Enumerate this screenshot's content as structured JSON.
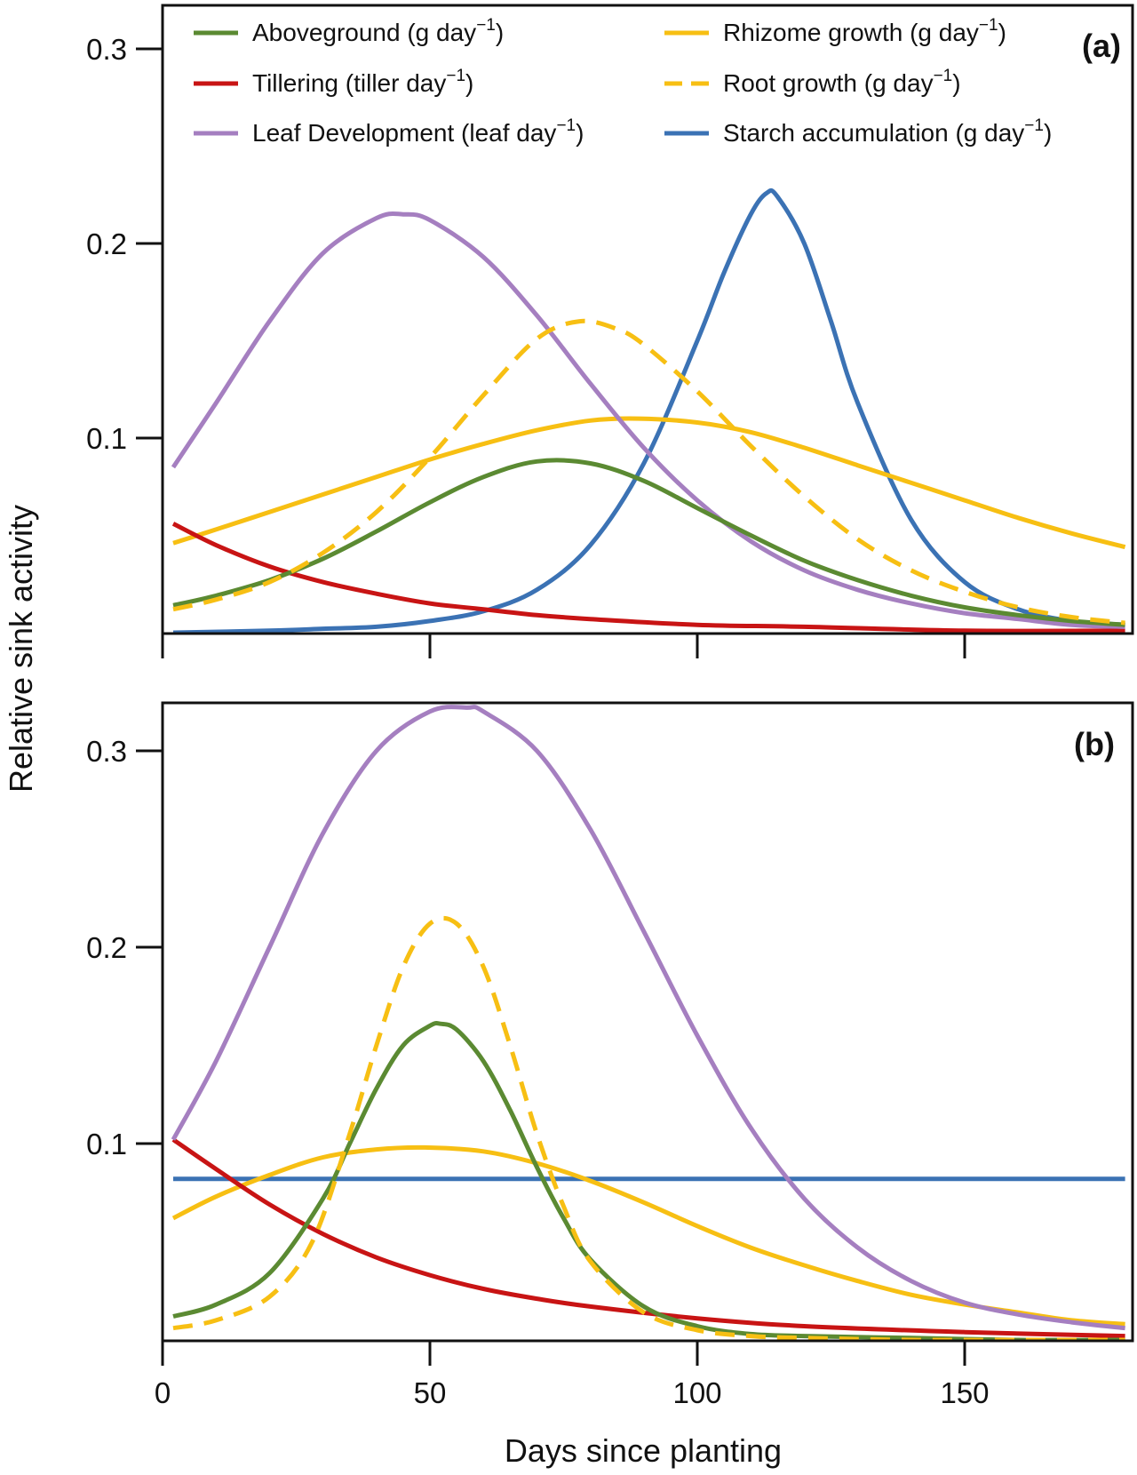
{
  "figure": {
    "ylabel": "Relative sink activity",
    "xlabel": "Days since planting"
  },
  "colors": {
    "aboveground": "#5b8a32",
    "tillering": "#c81414",
    "leaf": "#a57fc0",
    "rhizome": "#f7bf13",
    "root": "#f7bf13",
    "starch": "#3b72b4",
    "axis": "#111111"
  },
  "legend": [
    {
      "key": "aboveground",
      "text": "Aboveground (g day",
      "sup": "−1",
      "close": ")",
      "dashed": false
    },
    {
      "key": "tillering",
      "text": "Tillering (tiller day",
      "sup": "−1",
      "close": ")",
      "dashed": false
    },
    {
      "key": "leaf",
      "text": "Leaf Development (leaf day",
      "sup": "−1",
      "close": ")",
      "dashed": false
    },
    {
      "key": "rhizome",
      "text": "Rhizome  growth (g day",
      "sup": "−1",
      "close": ")",
      "dashed": false
    },
    {
      "key": "root",
      "text": "Root growth (g day",
      "sup": "−1",
      "close": ")",
      "dashed": true
    },
    {
      "key": "starch",
      "text": "Starch accumulation (g day",
      "sup": "−1",
      "close": ")",
      "dashed": false
    }
  ],
  "chart_data": [
    {
      "type": "line",
      "panel_label": "(a)",
      "xlabel": "Days since planting",
      "ylabel": "Relative sink activity",
      "xlim": [
        0,
        180
      ],
      "ylim": [
        0,
        0.32
      ],
      "xticks": [
        0,
        50,
        100,
        150
      ],
      "yticks": [
        0.1,
        0.2,
        0.3
      ],
      "ytick_labels": [
        "0.1",
        "0.2",
        "0.3"
      ],
      "series": [
        {
          "key": "aboveground",
          "name": "Aboveground (g day−1)",
          "x": [
            2,
            10,
            20,
            30,
            40,
            50,
            60,
            70,
            80,
            90,
            100,
            110,
            120,
            130,
            140,
            150,
            160,
            170,
            180
          ],
          "y": [
            0.014,
            0.019,
            0.027,
            0.038,
            0.052,
            0.067,
            0.08,
            0.088,
            0.087,
            0.078,
            0.064,
            0.05,
            0.037,
            0.027,
            0.019,
            0.013,
            0.009,
            0.006,
            0.004
          ]
        },
        {
          "key": "tillering",
          "name": "Tillering (tiller day−1)",
          "x": [
            2,
            10,
            20,
            30,
            40,
            50,
            60,
            70,
            80,
            100,
            120,
            150,
            180
          ],
          "y": [
            0.056,
            0.045,
            0.034,
            0.026,
            0.02,
            0.015,
            0.012,
            0.009,
            0.007,
            0.004,
            0.003,
            0.001,
            0.001
          ]
        },
        {
          "key": "leaf",
          "name": "Leaf Development (leaf day−1)",
          "x": [
            2,
            10,
            20,
            30,
            40,
            45,
            50,
            60,
            70,
            80,
            90,
            100,
            110,
            120,
            130,
            140,
            150,
            160,
            170,
            180
          ],
          "y": [
            0.085,
            0.118,
            0.16,
            0.195,
            0.213,
            0.215,
            0.212,
            0.193,
            0.163,
            0.128,
            0.095,
            0.068,
            0.047,
            0.032,
            0.022,
            0.015,
            0.01,
            0.007,
            0.004,
            0.003
          ]
        },
        {
          "key": "rhizome",
          "name": "Rhizome  growth (g day−1)",
          "x": [
            2,
            10,
            20,
            30,
            40,
            50,
            60,
            70,
            80,
            89,
            100,
            110,
            120,
            130,
            140,
            150,
            160,
            170,
            180
          ],
          "y": [
            0.046,
            0.053,
            0.062,
            0.071,
            0.08,
            0.089,
            0.097,
            0.104,
            0.109,
            0.11,
            0.108,
            0.103,
            0.095,
            0.086,
            0.077,
            0.068,
            0.059,
            0.051,
            0.044
          ]
        },
        {
          "key": "root",
          "name": "Root growth (g day−1)",
          "dashed": true,
          "x": [
            2,
            10,
            20,
            30,
            40,
            50,
            60,
            70,
            78,
            85,
            90,
            100,
            110,
            120,
            130,
            140,
            150,
            160,
            170,
            180
          ],
          "y": [
            0.012,
            0.017,
            0.026,
            0.041,
            0.062,
            0.09,
            0.122,
            0.151,
            0.16,
            0.156,
            0.148,
            0.124,
            0.096,
            0.07,
            0.048,
            0.032,
            0.021,
            0.013,
            0.008,
            0.005
          ]
        },
        {
          "key": "starch",
          "name": "Starch accumulation (g day−1)",
          "x": [
            2,
            20,
            30,
            40,
            50,
            60,
            70,
            80,
            90,
            100,
            105,
            110,
            113,
            115,
            120,
            125,
            130,
            140,
            150,
            160,
            170,
            180
          ],
          "y": [
            0.0,
            0.001,
            0.002,
            0.003,
            0.006,
            0.011,
            0.022,
            0.045,
            0.087,
            0.15,
            0.185,
            0.215,
            0.226,
            0.224,
            0.2,
            0.16,
            0.118,
            0.058,
            0.026,
            0.012,
            0.006,
            0.004
          ]
        }
      ]
    },
    {
      "type": "line",
      "panel_label": "(b)",
      "xlabel": "Days since planting",
      "ylabel": "Relative sink activity",
      "xlim": [
        0,
        180
      ],
      "ylim": [
        0,
        0.325
      ],
      "xticks": [
        0,
        50,
        100,
        150
      ],
      "xtick_labels": [
        "0",
        "50",
        "100",
        "150"
      ],
      "yticks": [
        0.1,
        0.2,
        0.3
      ],
      "ytick_labels": [
        "0.1",
        "0.2",
        "0.3"
      ],
      "series": [
        {
          "key": "aboveground",
          "name": "Aboveground (g day−1)",
          "x": [
            2,
            10,
            20,
            30,
            35,
            40,
            45,
            50,
            52,
            55,
            60,
            65,
            70,
            75,
            80,
            90,
            100,
            110,
            120,
            140,
            160,
            180
          ],
          "y": [
            0.012,
            0.018,
            0.034,
            0.072,
            0.1,
            0.128,
            0.15,
            0.16,
            0.161,
            0.158,
            0.142,
            0.117,
            0.088,
            0.062,
            0.041,
            0.017,
            0.007,
            0.003,
            0.002,
            0.001,
            0.0,
            0.0
          ]
        },
        {
          "key": "tillering",
          "name": "Tillering (tiller day−1)",
          "x": [
            2,
            10,
            20,
            30,
            40,
            50,
            60,
            70,
            80,
            100,
            120,
            150,
            180
          ],
          "y": [
            0.102,
            0.087,
            0.069,
            0.054,
            0.042,
            0.033,
            0.026,
            0.021,
            0.017,
            0.011,
            0.007,
            0.004,
            0.002
          ]
        },
        {
          "key": "leaf",
          "name": "Leaf Development (leaf day−1)",
          "x": [
            2,
            10,
            20,
            30,
            40,
            50,
            57,
            60,
            70,
            80,
            90,
            100,
            110,
            120,
            130,
            140,
            150,
            160,
            170,
            180
          ],
          "y": [
            0.102,
            0.142,
            0.2,
            0.258,
            0.3,
            0.32,
            0.322,
            0.32,
            0.3,
            0.26,
            0.208,
            0.155,
            0.108,
            0.072,
            0.047,
            0.03,
            0.019,
            0.013,
            0.009,
            0.006
          ]
        },
        {
          "key": "rhizome",
          "name": "Rhizome  growth (g day−1)",
          "x": [
            2,
            10,
            20,
            30,
            40,
            49,
            60,
            70,
            80,
            90,
            100,
            110,
            120,
            130,
            140,
            150,
            160,
            170,
            180
          ],
          "y": [
            0.062,
            0.073,
            0.084,
            0.093,
            0.097,
            0.098,
            0.096,
            0.09,
            0.081,
            0.07,
            0.058,
            0.047,
            0.038,
            0.03,
            0.023,
            0.018,
            0.014,
            0.01,
            0.008
          ]
        },
        {
          "key": "root",
          "name": "Root growth (g day−1)",
          "dashed": true,
          "x": [
            2,
            10,
            20,
            28,
            35,
            40,
            45,
            50,
            55,
            60,
            65,
            70,
            75,
            80,
            90,
            100,
            110,
            120,
            140,
            160,
            180
          ],
          "y": [
            0.006,
            0.01,
            0.022,
            0.05,
            0.105,
            0.15,
            0.19,
            0.212,
            0.212,
            0.19,
            0.15,
            0.105,
            0.068,
            0.04,
            0.014,
            0.005,
            0.002,
            0.001,
            0.0,
            0.0,
            0.0
          ]
        },
        {
          "key": "starch",
          "name": "Starch accumulation (g day−1)",
          "x": [
            2,
            180
          ],
          "y": [
            0.082,
            0.082
          ]
        }
      ]
    }
  ]
}
